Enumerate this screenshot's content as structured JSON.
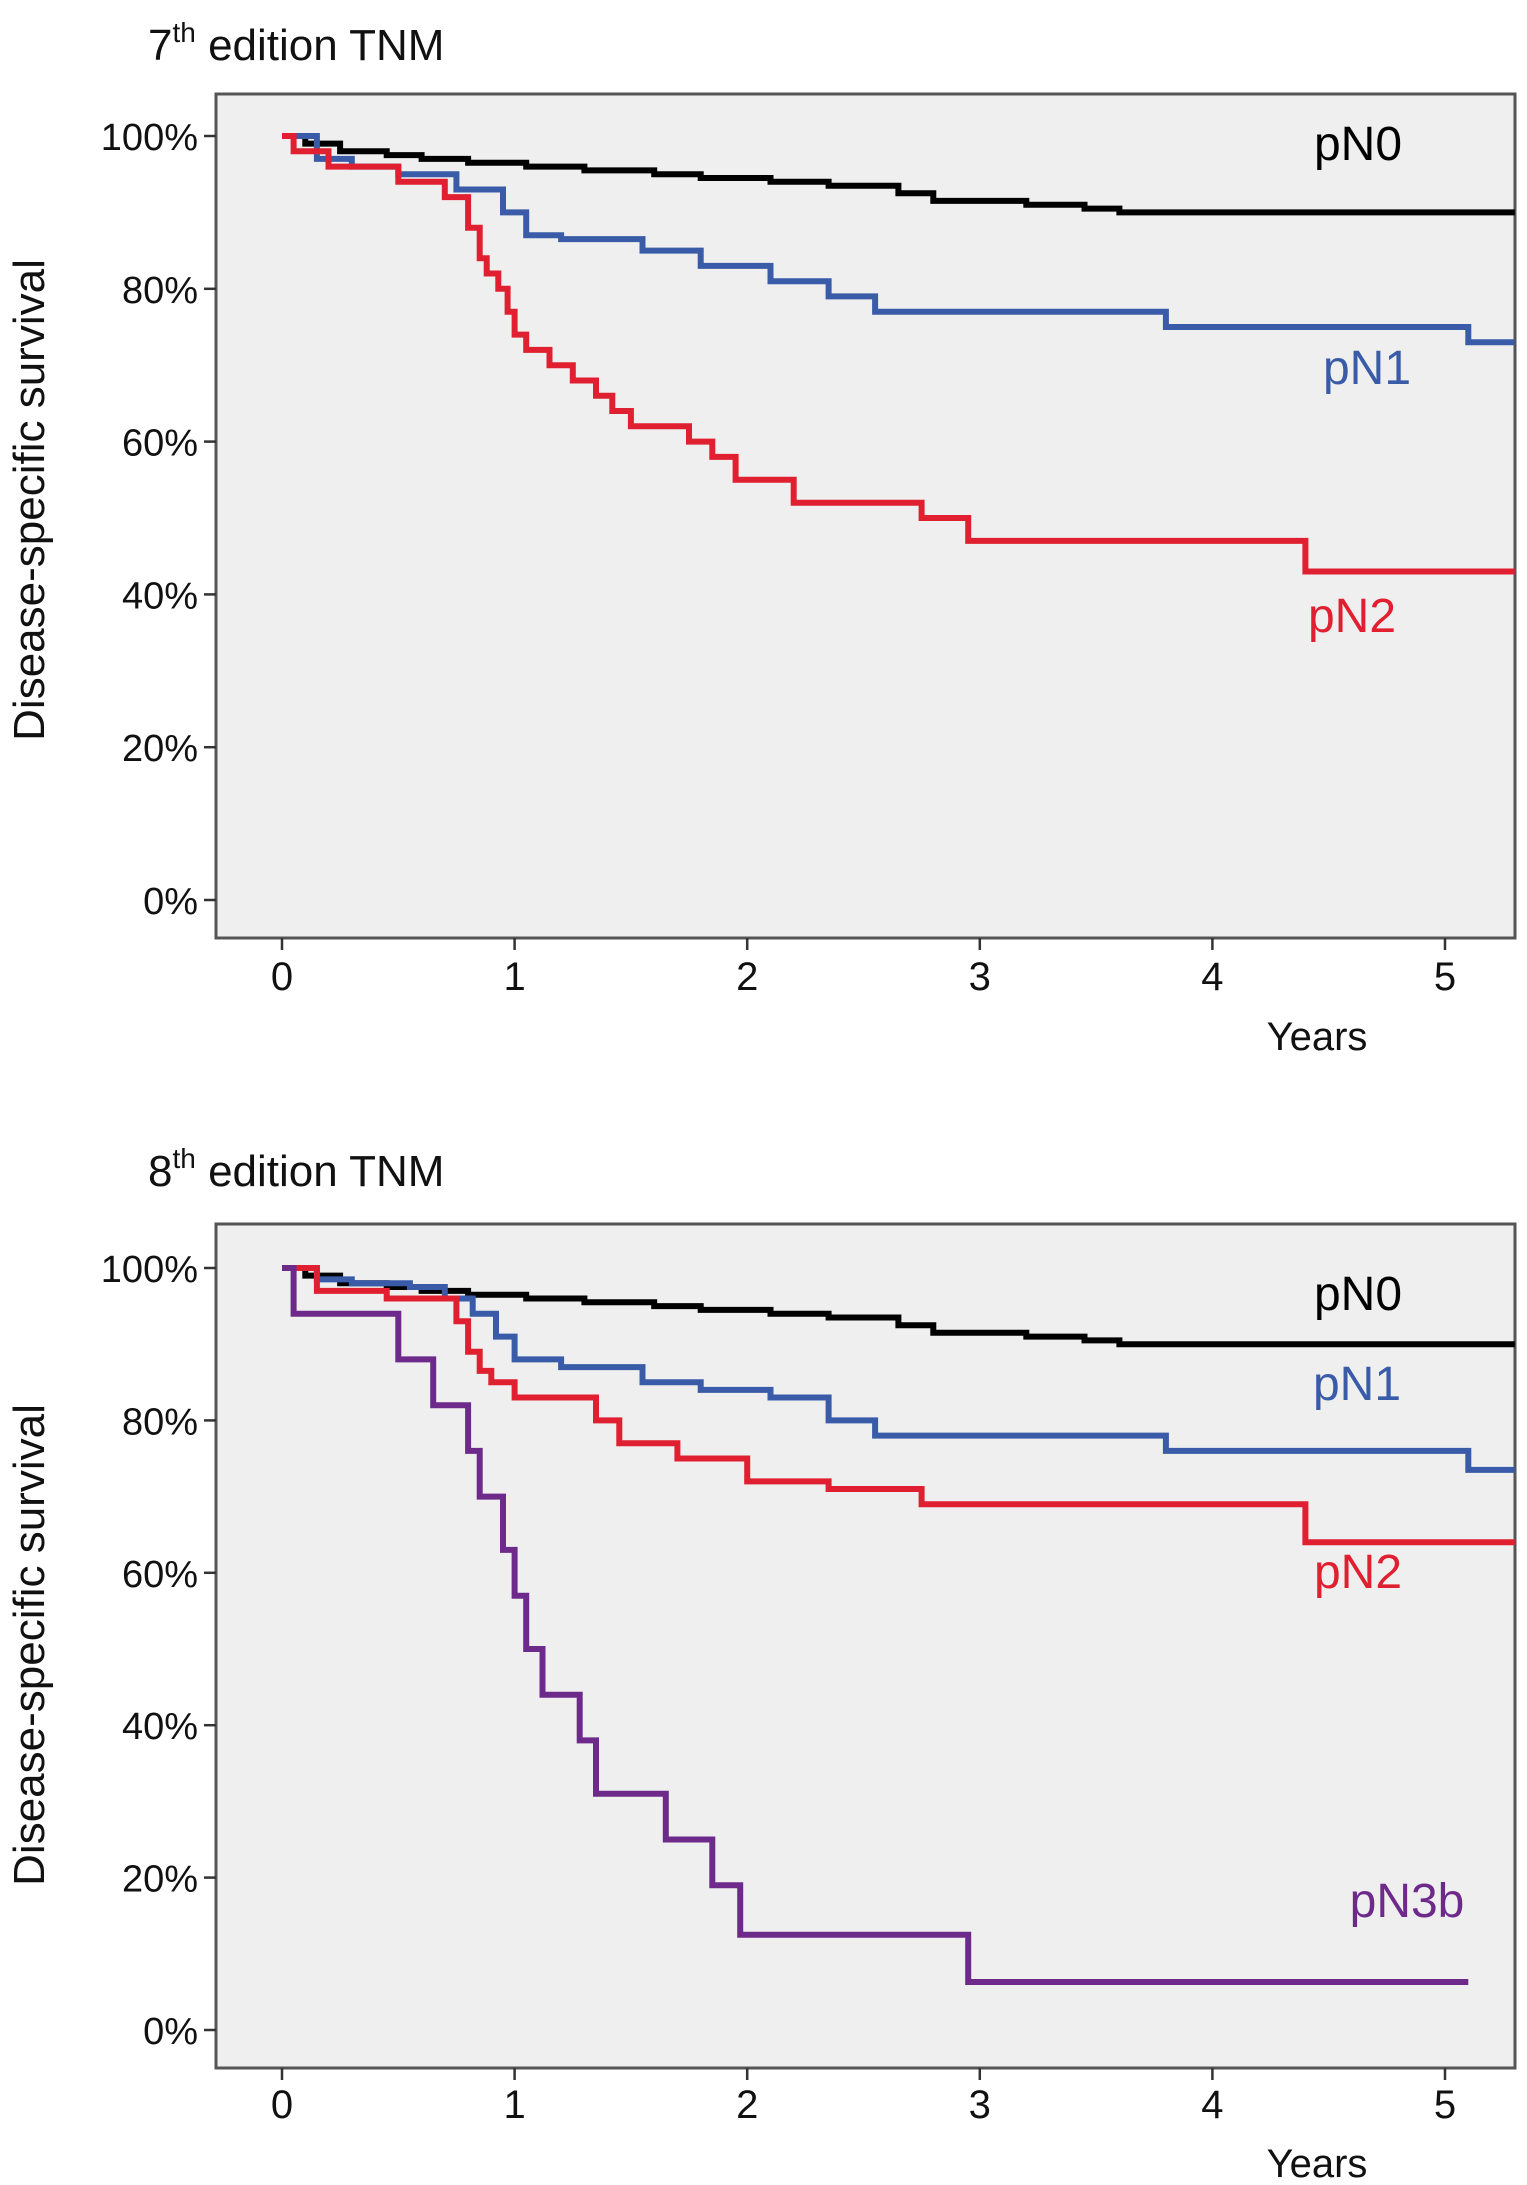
{
  "chart_data": [
    {
      "type": "line",
      "step": true,
      "title": {
        "main": "7",
        "sup": "th",
        "rest": " edition TNM"
      },
      "xlabel": "Years",
      "ylabel": "Disease-specific survival",
      "xlim": [
        0,
        5.3
      ],
      "ylim": [
        0,
        100
      ],
      "x_ticks": [
        "0",
        "1",
        "2",
        "3",
        "4",
        "5"
      ],
      "y_ticks": [
        "0%",
        "20%",
        "40%",
        "60%",
        "80%",
        "100%"
      ],
      "grid": false,
      "series": [
        {
          "name": "pN0",
          "label": "pN0",
          "color": "#000000",
          "x": [
            0,
            0.1,
            0.25,
            0.45,
            0.6,
            0.8,
            1.05,
            1.3,
            1.6,
            1.8,
            2.1,
            2.35,
            2.65,
            2.8,
            3.2,
            3.45,
            3.6,
            4.2,
            5.3
          ],
          "y": [
            100,
            99,
            98,
            97.5,
            97,
            96.5,
            96,
            95.5,
            95,
            94.5,
            94,
            93.5,
            92.5,
            91.5,
            91,
            90.5,
            90,
            90,
            90
          ]
        },
        {
          "name": "pN1",
          "label": "pN1",
          "color": "#3a5ca8",
          "x": [
            0,
            0.15,
            0.3,
            0.5,
            0.75,
            0.95,
            1.05,
            1.2,
            1.55,
            1.8,
            2.1,
            2.35,
            2.55,
            3.05,
            3.8,
            4.3,
            5.1,
            5.3
          ],
          "y": [
            100,
            97,
            96,
            95,
            93,
            90,
            87,
            86.5,
            85,
            83,
            81,
            79,
            77,
            77,
            75,
            75,
            73,
            73
          ]
        },
        {
          "name": "pN2",
          "label": "pN2",
          "color": "#e02030",
          "x": [
            0,
            0.05,
            0.2,
            0.5,
            0.7,
            0.8,
            0.85,
            0.88,
            0.93,
            0.97,
            1.0,
            1.05,
            1.15,
            1.25,
            1.35,
            1.42,
            1.5,
            1.6,
            1.75,
            1.85,
            1.95,
            2.2,
            2.35,
            2.75,
            2.95,
            3.4,
            4.4,
            5.3
          ],
          "y": [
            100,
            98,
            96,
            94,
            92,
            88,
            84,
            82,
            80,
            77,
            74,
            72,
            70,
            68,
            66,
            64,
            62,
            62,
            60,
            58,
            55,
            52,
            52,
            50,
            47,
            47,
            43,
            43
          ]
        }
      ]
    },
    {
      "type": "line",
      "step": true,
      "title": {
        "main": "8",
        "sup": "th",
        "rest": " edition TNM"
      },
      "xlabel": "Years",
      "ylabel": "Disease-specific survival",
      "xlim": [
        0,
        5.3
      ],
      "ylim": [
        0,
        100
      ],
      "x_ticks": [
        "0",
        "1",
        "2",
        "3",
        "4",
        "5"
      ],
      "y_ticks": [
        "0%",
        "20%",
        "40%",
        "60%",
        "80%",
        "100%"
      ],
      "grid": false,
      "series": [
        {
          "name": "pN0",
          "label": "pN0",
          "color": "#000000",
          "x": [
            0,
            0.1,
            0.25,
            0.45,
            0.6,
            0.8,
            1.05,
            1.3,
            1.6,
            1.8,
            2.1,
            2.35,
            2.65,
            2.8,
            3.2,
            3.45,
            3.6,
            4.2,
            5.3
          ],
          "y": [
            100,
            99,
            98,
            97.5,
            97,
            96.5,
            96,
            95.5,
            95,
            94.5,
            94,
            93.5,
            92.5,
            91.5,
            91,
            90.5,
            90,
            90,
            90
          ]
        },
        {
          "name": "pN1",
          "label": "pN1",
          "color": "#3a5ca8",
          "x": [
            0,
            0.15,
            0.3,
            0.55,
            0.7,
            0.82,
            0.92,
            1.0,
            1.2,
            1.55,
            1.8,
            2.1,
            2.35,
            2.55,
            3.1,
            3.8,
            4.3,
            5.1,
            5.3
          ],
          "y": [
            100,
            98.5,
            98,
            97.5,
            96,
            94,
            91,
            88,
            87,
            85,
            84,
            83,
            80,
            78,
            78,
            76,
            76,
            73.5,
            73.5
          ]
        },
        {
          "name": "pN2",
          "label": "pN2",
          "color": "#e02030",
          "x": [
            0,
            0.15,
            0.45,
            0.75,
            0.8,
            0.85,
            0.9,
            1.0,
            1.35,
            1.45,
            1.7,
            2.0,
            2.35,
            2.75,
            3.3,
            4.4,
            5.3
          ],
          "y": [
            100,
            97,
            96,
            93,
            89,
            86.5,
            85,
            83,
            80,
            77,
            75,
            72,
            71,
            69,
            69,
            64,
            64
          ]
        },
        {
          "name": "pN3b",
          "label": "pN3b",
          "color": "#6e2a8a",
          "x": [
            0,
            0.05,
            0.4,
            0.5,
            0.65,
            0.8,
            0.85,
            0.95,
            1.0,
            1.05,
            1.12,
            1.18,
            1.28,
            1.35,
            1.65,
            1.85,
            1.97,
            2.1,
            2.95,
            3.1,
            5.1
          ],
          "y": [
            100,
            94,
            94,
            88,
            82,
            76,
            70,
            63,
            57,
            50,
            44,
            44,
            38,
            31,
            25,
            19,
            12.5,
            12.5,
            6.3,
            6.3,
            6.3
          ]
        }
      ]
    }
  ]
}
